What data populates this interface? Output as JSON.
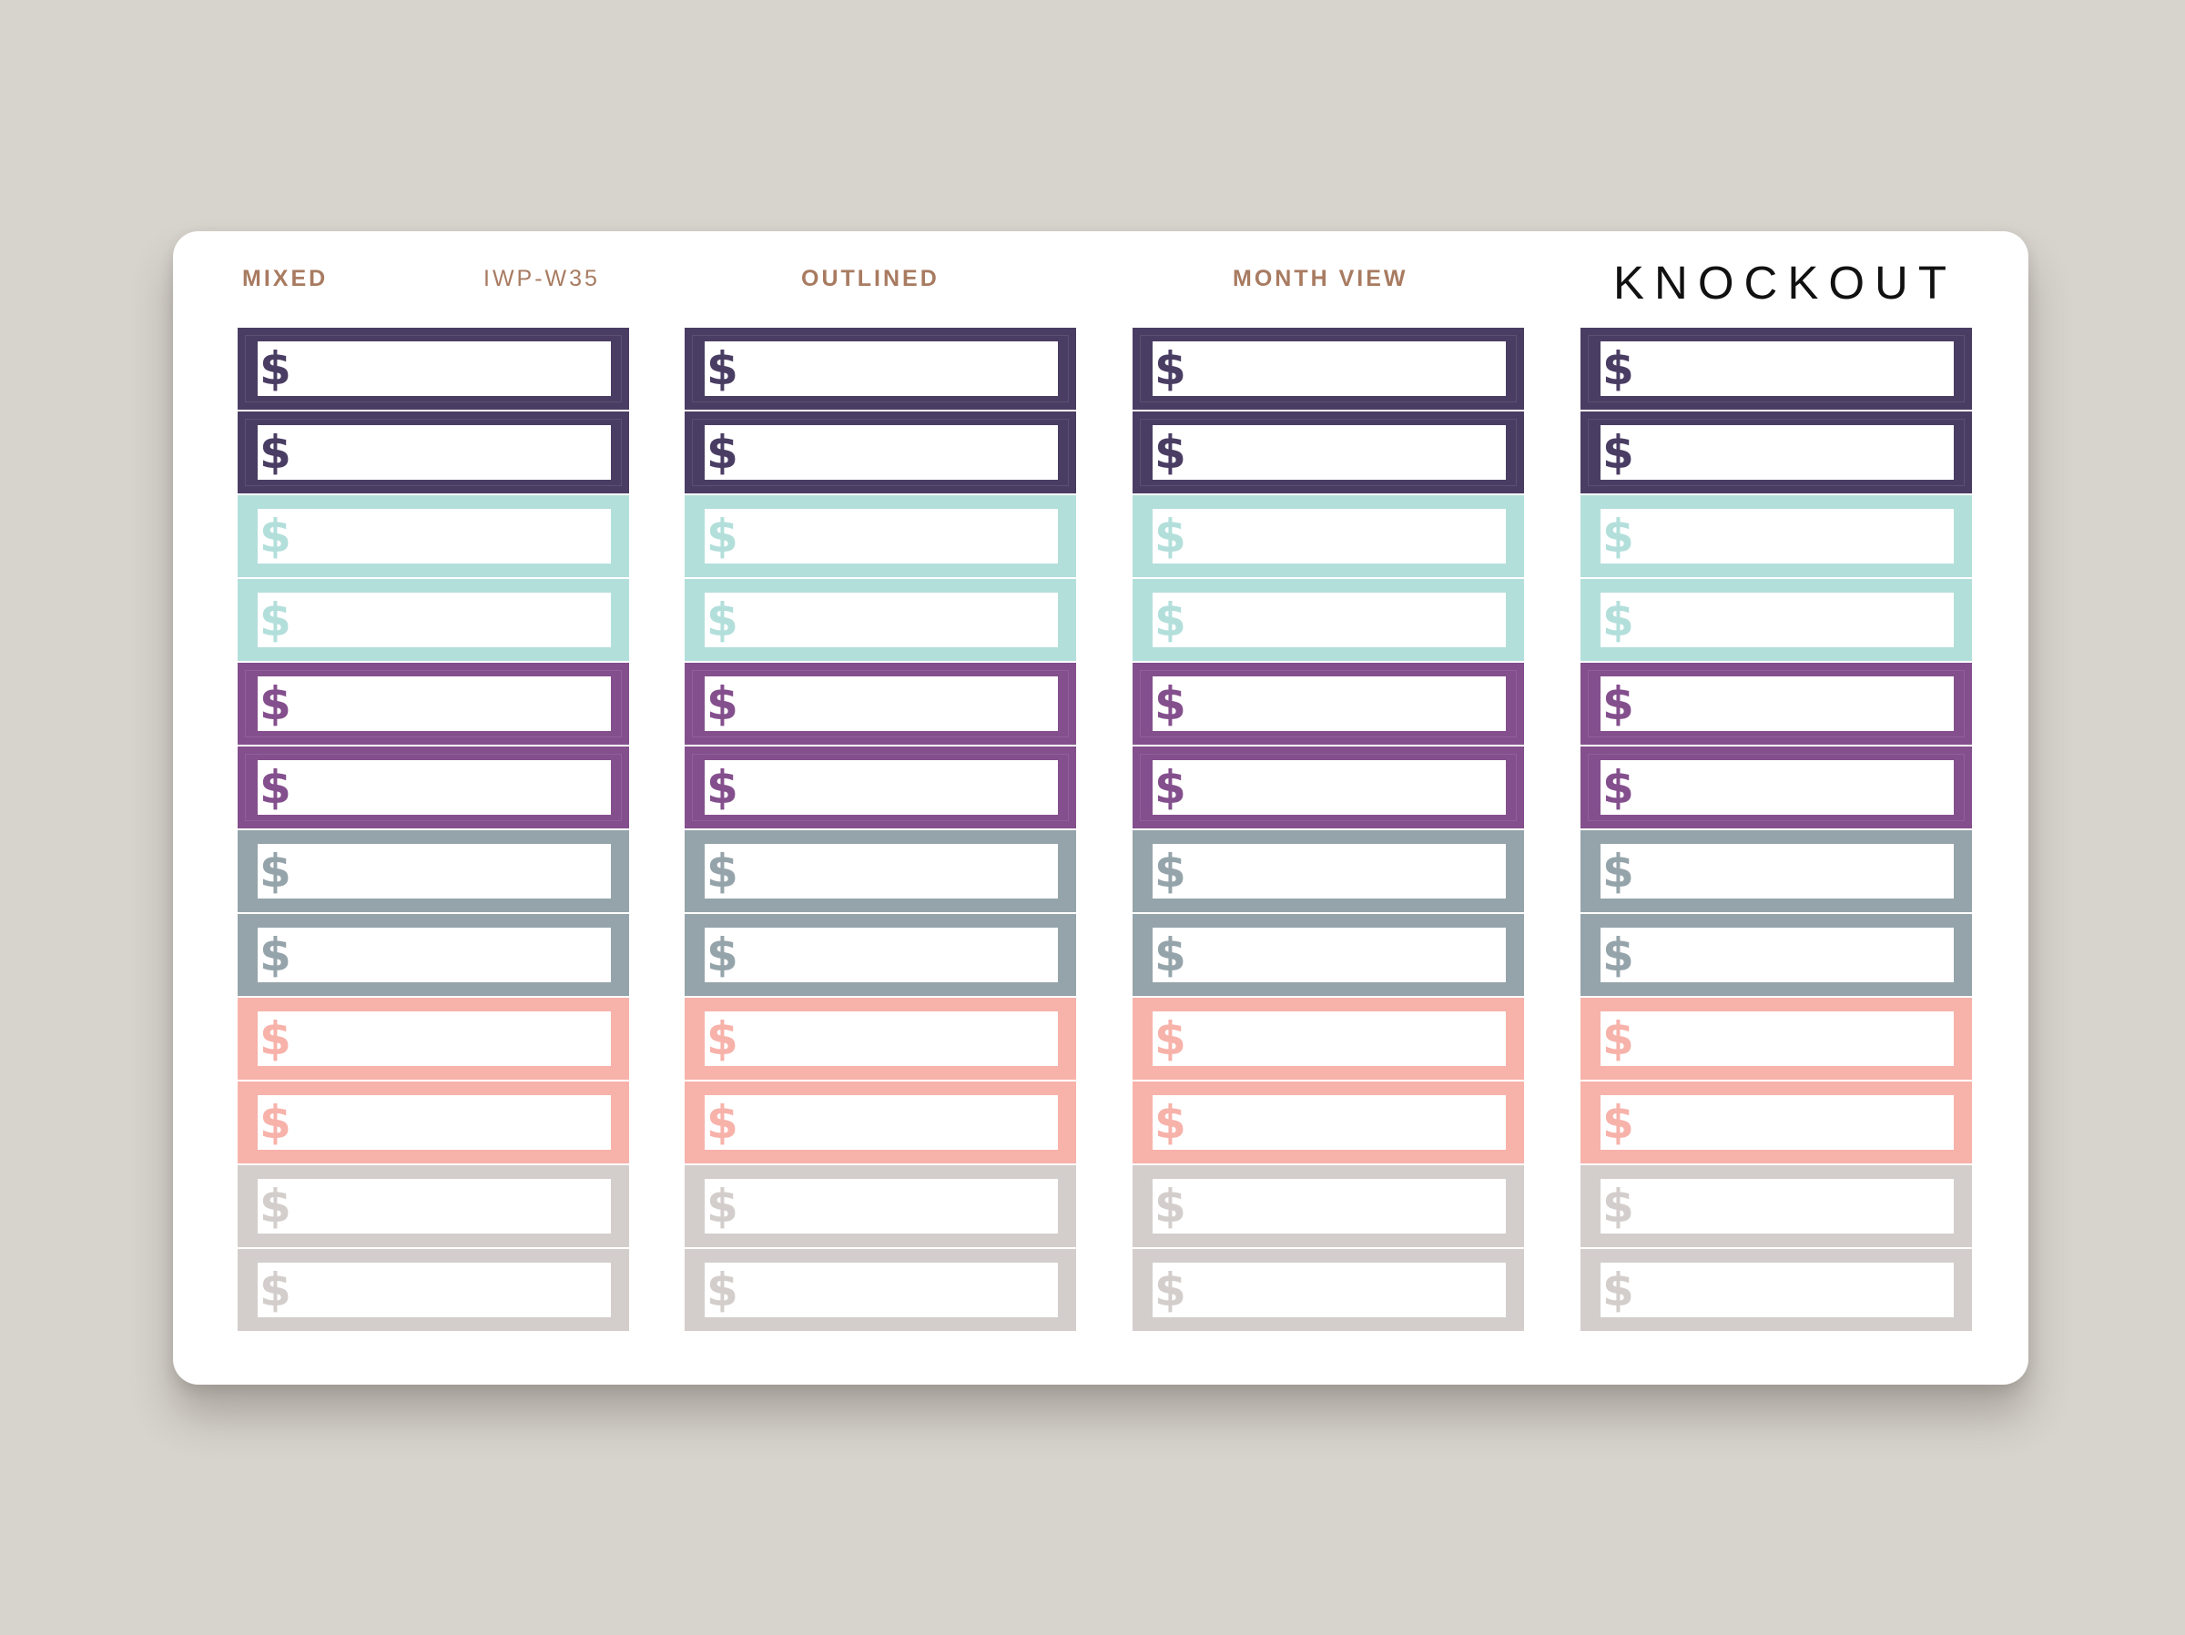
{
  "header": {
    "mixed": "MIXED",
    "product_code": "IWP-W35",
    "outlined": "OUTLINED",
    "month_view": "MONTH VIEW",
    "brand": "KNOCKOUT"
  },
  "labels": {
    "symbol": "$",
    "icon": "dollar-sign-icon",
    "columns": 4,
    "rows": [
      {
        "color": "#4a3d63",
        "dark": true
      },
      {
        "color": "#4a3d63",
        "dark": true
      },
      {
        "color": "#b3dfdb",
        "dark": false
      },
      {
        "color": "#b3dfdb",
        "dark": false
      },
      {
        "color": "#844f8d",
        "dark": true
      },
      {
        "color": "#844f8d",
        "dark": true
      },
      {
        "color": "#95a4aa",
        "dark": false
      },
      {
        "color": "#95a4aa",
        "dark": false
      },
      {
        "color": "#f7b2aa",
        "dark": false
      },
      {
        "color": "#f7b2aa",
        "dark": false
      },
      {
        "color": "#d3cecb",
        "dark": false
      },
      {
        "color": "#d3cecb",
        "dark": false
      }
    ]
  }
}
